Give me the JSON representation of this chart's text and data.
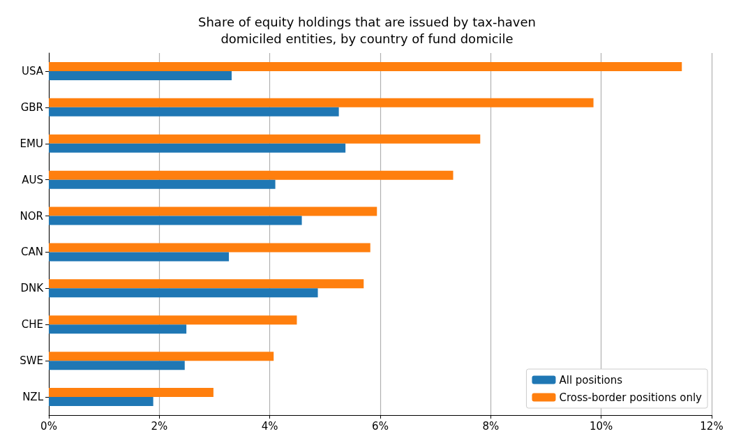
{
  "chart_data": {
    "type": "bar",
    "orientation": "horizontal",
    "title": "Share of equity holdings that are issued by tax-haven\ndomiciled entities, by country of fund domicile",
    "categories": [
      "USA",
      "GBR",
      "EMU",
      "AUS",
      "NOR",
      "CAN",
      "DNK",
      "CHE",
      "SWE",
      "NZL"
    ],
    "series": [
      {
        "name": "All positions",
        "color": "#1f77b4",
        "values": [
          3.31,
          5.25,
          5.37,
          4.1,
          4.58,
          3.26,
          4.87,
          2.49,
          2.46,
          1.89
        ]
      },
      {
        "name": "Cross-border positions only",
        "color": "#ff7f0e",
        "values": [
          11.46,
          9.86,
          7.81,
          7.32,
          5.94,
          5.82,
          5.7,
          4.49,
          4.07,
          2.98
        ]
      }
    ],
    "xlim": [
      0,
      12
    ],
    "xticks": [
      {
        "value": 0,
        "label": "0%"
      },
      {
        "value": 2,
        "label": "2%"
      },
      {
        "value": 4,
        "label": "4%"
      },
      {
        "value": 6,
        "label": "6%"
      },
      {
        "value": 8,
        "label": "8%"
      },
      {
        "value": 10,
        "label": "10%"
      },
      {
        "value": 12,
        "label": "12%"
      }
    ],
    "grid": "x",
    "legend": "bottom right"
  }
}
